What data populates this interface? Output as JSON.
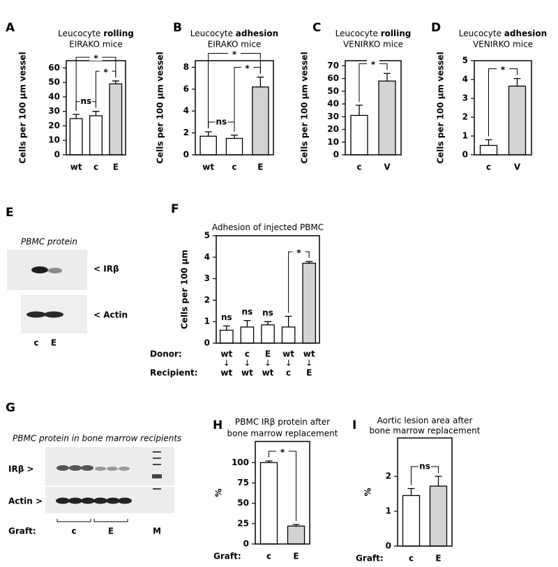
{
  "chart_data": [
    {
      "type": "bar",
      "panel": "A",
      "title": "Leucocyte",
      "title_bold": "rolling",
      "subtitle": "EIRAKO mice",
      "ylabel": "Cells per 100 μm vessel",
      "categories": [
        "wt",
        "c",
        "E"
      ],
      "values": [
        25,
        27,
        49
      ],
      "errors": [
        3,
        3,
        2
      ],
      "colors": [
        "#ffffff",
        "#ffffff",
        "#d3d3d3"
      ],
      "ylim": [
        0,
        65
      ],
      "yticks": [
        0,
        10,
        20,
        30,
        40,
        50,
        60
      ],
      "annotations": [
        {
          "text": "*",
          "between": [
            0,
            2
          ]
        },
        {
          "text": "*",
          "between": [
            1,
            2
          ]
        },
        {
          "text": "ns",
          "between": [
            0,
            1
          ]
        }
      ]
    },
    {
      "type": "bar",
      "panel": "B",
      "title": "Leucocyte",
      "title_bold": "adhesion",
      "subtitle": "EIRAKO mice",
      "ylabel": "Cells per 100 μm vessel",
      "categories": [
        "wt",
        "c",
        "E"
      ],
      "values": [
        1.7,
        1.5,
        6.2
      ],
      "errors": [
        0.4,
        0.3,
        0.9
      ],
      "colors": [
        "#ffffff",
        "#ffffff",
        "#d3d3d3"
      ],
      "ylim": [
        0,
        8.6
      ],
      "yticks": [
        0,
        2,
        4,
        6,
        8
      ],
      "annotations": [
        {
          "text": "*",
          "between": [
            0,
            2
          ]
        },
        {
          "text": "*",
          "between": [
            1,
            2
          ]
        },
        {
          "text": "ns",
          "between": [
            0,
            1
          ]
        }
      ]
    },
    {
      "type": "bar",
      "panel": "C",
      "title": "Leucocyte",
      "title_bold": "rolling",
      "subtitle": "VENIRKO mice",
      "ylabel": "Cells per 100 μm vessel",
      "categories": [
        "c",
        "V"
      ],
      "values": [
        31,
        58
      ],
      "errors": [
        8,
        6
      ],
      "colors": [
        "#ffffff",
        "#d3d3d3"
      ],
      "ylim": [
        0,
        74
      ],
      "yticks": [
        0,
        10,
        20,
        30,
        40,
        50,
        60,
        70
      ],
      "annotations": [
        {
          "text": "*",
          "between": [
            0,
            1
          ]
        }
      ]
    },
    {
      "type": "bar",
      "panel": "D",
      "title": "Leucocyte",
      "title_bold": "adhesion",
      "subtitle": "VENIRKO mice",
      "ylabel": "Cells per 100 μm vessel",
      "categories": [
        "c",
        "V"
      ],
      "values": [
        0.5,
        3.65
      ],
      "errors": [
        0.3,
        0.4
      ],
      "colors": [
        "#ffffff",
        "#d3d3d3"
      ],
      "ylim": [
        0,
        5
      ],
      "yticks": [
        0,
        1,
        2,
        3,
        4,
        5
      ],
      "annotations": [
        {
          "text": "*",
          "between": [
            0,
            1
          ]
        }
      ]
    },
    {
      "type": "bar",
      "panel": "F",
      "title": "Adhesion of injected PBMC",
      "ylabel": "Cells per 100 μm",
      "categories": [
        "wt",
        "c",
        "E",
        "wt",
        "wt"
      ],
      "recipient": [
        "wt",
        "wt",
        "wt",
        "c",
        "E"
      ],
      "arrow": "↓",
      "row_labels": [
        "Donor:",
        "Recipient:"
      ],
      "values": [
        0.6,
        0.75,
        0.85,
        0.75,
        3.72
      ],
      "errors": [
        0.2,
        0.3,
        0.15,
        0.5,
        0.08
      ],
      "colors": [
        "#ffffff",
        "#ffffff",
        "#ffffff",
        "#ffffff",
        "#d3d3d3"
      ],
      "ylim": [
        0,
        5
      ],
      "yticks": [
        0,
        1,
        2,
        3,
        4,
        5
      ],
      "annotations": [
        {
          "text": "ns",
          "between": [
            0,
            0
          ]
        },
        {
          "text": "ns",
          "between": [
            1,
            1
          ]
        },
        {
          "text": "ns",
          "between": [
            2,
            2
          ]
        },
        {
          "text": "*",
          "between": [
            3,
            4
          ]
        }
      ]
    },
    {
      "type": "bar",
      "panel": "H",
      "title": "PBMC IRβ protein after",
      "subtitle": "bone marrow replacement",
      "ylabel": "%",
      "row_label": "Graft:",
      "categories": [
        "c",
        "E"
      ],
      "values": [
        100,
        22
      ],
      "errors": [
        2,
        2
      ],
      "colors": [
        "#ffffff",
        "#d3d3d3"
      ],
      "ylim": [
        0,
        126
      ],
      "yticks": [
        0,
        25,
        50,
        75,
        100
      ],
      "annotations": [
        {
          "text": "*",
          "between": [
            0,
            1
          ]
        }
      ]
    },
    {
      "type": "bar",
      "panel": "I",
      "title": "Aortic lesion area after",
      "subtitle": "bone marrow replacement",
      "ylabel": "%",
      "row_label": "Graft:",
      "categories": [
        "c",
        "E"
      ],
      "values": [
        1.45,
        1.72
      ],
      "errors": [
        0.2,
        0.28
      ],
      "colors": [
        "#ffffff",
        "#d3d3d3"
      ],
      "ylim": [
        0,
        3.1
      ],
      "yticks": [
        0,
        1,
        2
      ],
      "annotations": [
        {
          "text": "ns",
          "between": [
            0,
            1
          ]
        }
      ]
    }
  ],
  "blots": {
    "E": {
      "panel": "E",
      "caption": "PBMC protein",
      "bands": [
        "< IRβ",
        "< Actin"
      ],
      "lanes": [
        "c",
        "E"
      ]
    },
    "G": {
      "panel": "G",
      "caption": "PBMC protein in bone marrow recipients",
      "bands": [
        "IRβ >",
        "Actin >"
      ],
      "row_label": "Graft:",
      "lanes": [
        "c",
        "E",
        "M"
      ]
    }
  }
}
